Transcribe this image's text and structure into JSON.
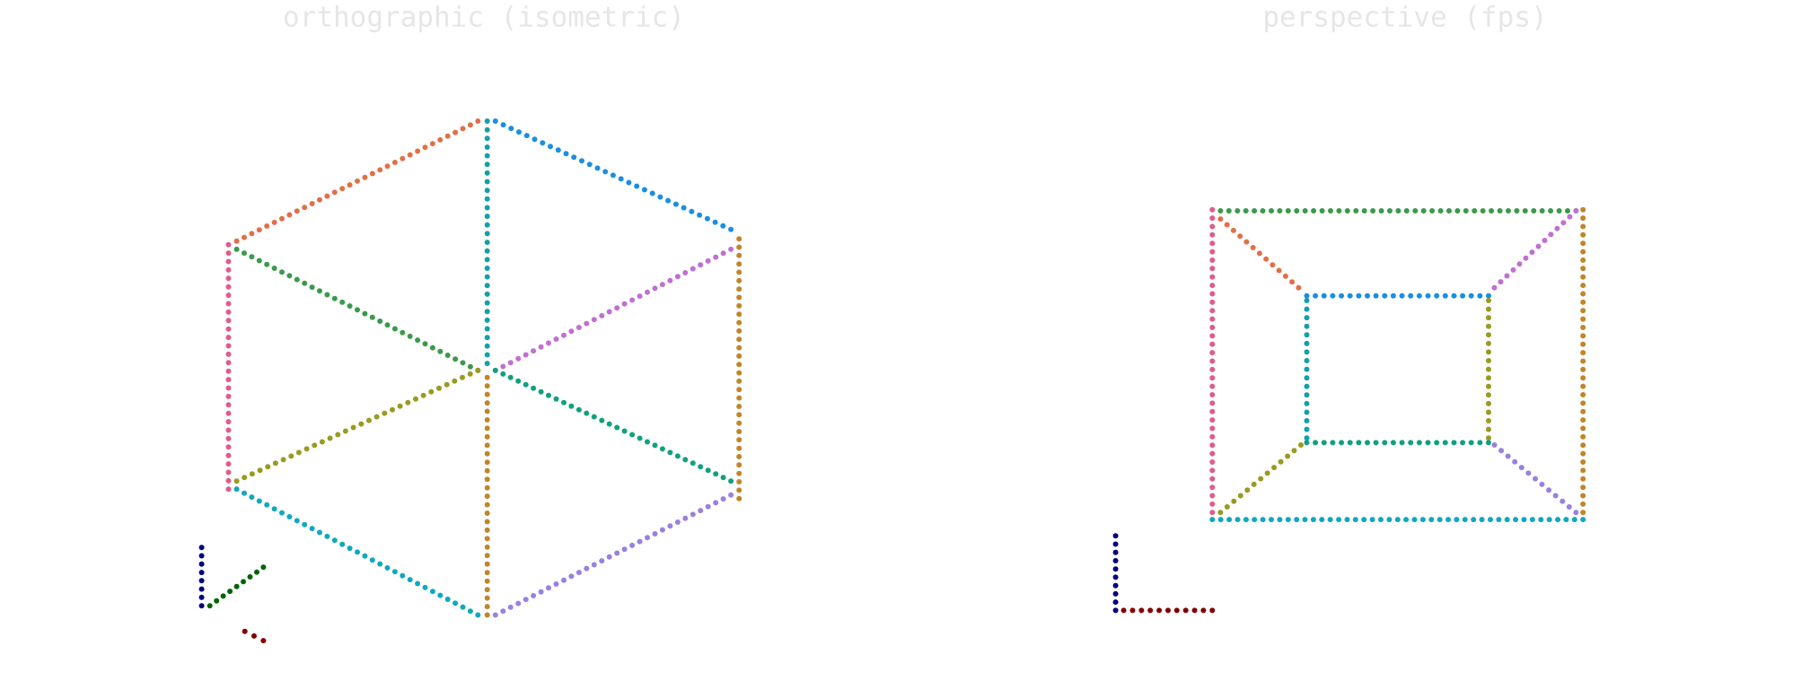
{
  "panels": [
    {
      "title": "orthographic (isometric)"
    },
    {
      "title": "perspective (fps)"
    }
  ]
}
